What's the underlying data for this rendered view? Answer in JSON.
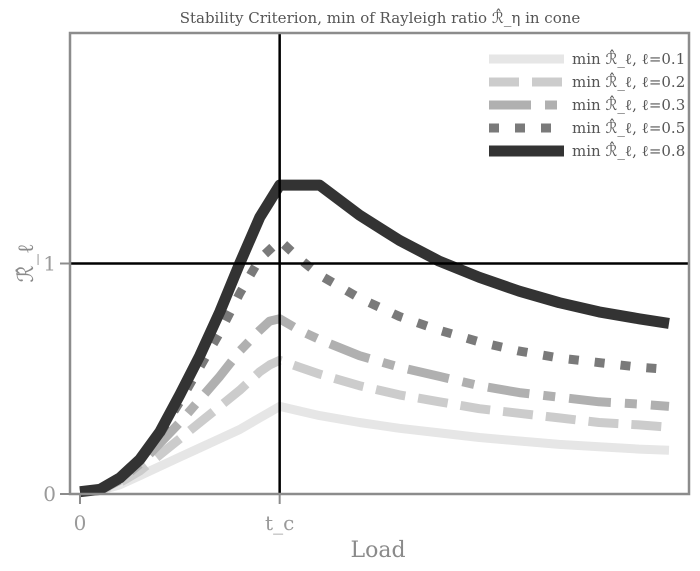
{
  "chart_data": {
    "type": "line",
    "title": "Stability Criterion, min of Rayleigh ratio ℛ̂_η in cone",
    "xlabel": "Load",
    "ylabel": "ℛ̂_ℓ",
    "x_ticks": [
      "0",
      "t_c"
    ],
    "y_ticks": [
      "0",
      "1"
    ],
    "xlim": [
      -0.05,
      3.05
    ],
    "ylim": [
      0,
      2.0
    ],
    "reference_lines": {
      "x": 1.0,
      "y": 1.0
    },
    "legend_position": "top-right",
    "x": [
      0,
      0.1,
      0.2,
      0.3,
      0.4,
      0.5,
      0.6,
      0.7,
      0.8,
      0.9,
      0.95,
      1.0,
      1.1,
      1.2,
      1.4,
      1.6,
      1.8,
      2.0,
      2.2,
      2.4,
      2.6,
      2.8,
      2.95
    ],
    "series": [
      {
        "name": "min ℛ̂_ℓ, ℓ=0.1",
        "style": "solid",
        "color": "#e6e6e6",
        "values": [
          0.01,
          0.015,
          0.04,
          0.08,
          0.12,
          0.16,
          0.2,
          0.24,
          0.28,
          0.33,
          0.355,
          0.38,
          0.36,
          0.34,
          0.31,
          0.285,
          0.265,
          0.245,
          0.23,
          0.215,
          0.205,
          0.195,
          0.19
        ]
      },
      {
        "name": "min ℛ̂_ℓ, ℓ=0.2",
        "style": "dashed",
        "color": "#cccccc",
        "values": [
          0.01,
          0.015,
          0.05,
          0.1,
          0.17,
          0.24,
          0.31,
          0.38,
          0.45,
          0.53,
          0.56,
          0.58,
          0.55,
          0.52,
          0.47,
          0.43,
          0.4,
          0.37,
          0.35,
          0.33,
          0.31,
          0.3,
          0.29
        ]
      },
      {
        "name": "min ℛ̂_ℓ, ℓ=0.3",
        "style": "dashdot",
        "color": "#b0b0b0",
        "values": [
          0.01,
          0.015,
          0.06,
          0.13,
          0.22,
          0.31,
          0.41,
          0.51,
          0.62,
          0.71,
          0.75,
          0.76,
          0.71,
          0.67,
          0.6,
          0.55,
          0.51,
          0.47,
          0.44,
          0.42,
          0.4,
          0.39,
          0.38
        ]
      },
      {
        "name": "min ℛ̂_ℓ, ℓ=0.5",
        "style": "dotted",
        "color": "#7a7a7a",
        "values": [
          0.01,
          0.015,
          0.07,
          0.15,
          0.26,
          0.4,
          0.55,
          0.7,
          0.87,
          1.02,
          1.06,
          1.1,
          1.02,
          0.95,
          0.85,
          0.77,
          0.71,
          0.66,
          0.62,
          0.59,
          0.57,
          0.55,
          0.54
        ]
      },
      {
        "name": "min ℛ̂_ℓ, ℓ=0.8",
        "style": "solid",
        "color": "#333333",
        "values": [
          0.01,
          0.02,
          0.07,
          0.15,
          0.27,
          0.43,
          0.6,
          0.79,
          1.0,
          1.2,
          1.27,
          1.34,
          1.34,
          1.34,
          1.21,
          1.1,
          1.01,
          0.94,
          0.88,
          0.83,
          0.79,
          0.76,
          0.74
        ]
      }
    ]
  }
}
